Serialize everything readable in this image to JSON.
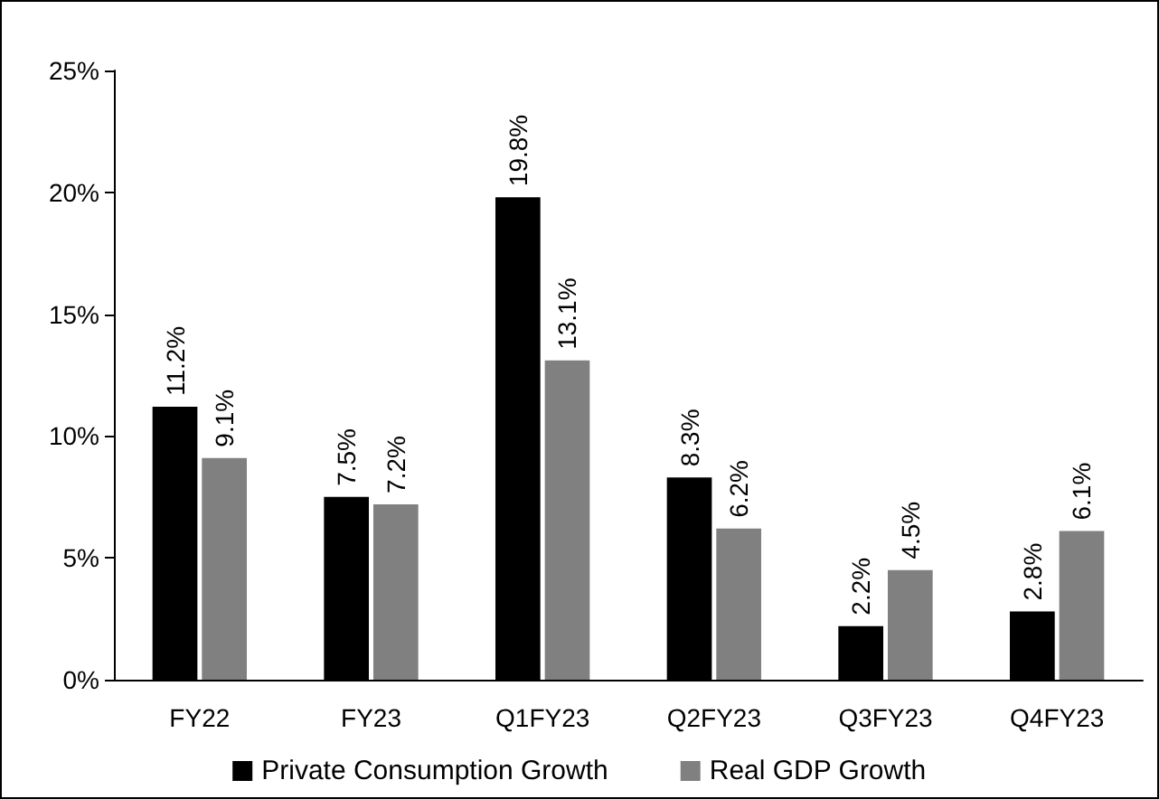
{
  "chart_data": {
    "type": "bar",
    "categories": [
      "FY22",
      "FY23",
      "Q1FY23",
      "Q2FY23",
      "Q3FY23",
      "Q4FY23"
    ],
    "series": [
      {
        "name": "Private Consumption Growth",
        "color": "#000000",
        "values": [
          11.2,
          7.5,
          19.8,
          8.3,
          2.2,
          2.8
        ],
        "value_labels": [
          "11.2%",
          "7.5%",
          "19.8%",
          "8.3%",
          "2.2%",
          "2.8%"
        ]
      },
      {
        "name": "Real GDP Growth",
        "color": "#808080",
        "values": [
          9.1,
          7.2,
          13.1,
          6.2,
          4.5,
          6.1
        ],
        "value_labels": [
          "9.1%",
          "7.2%",
          "13.1%",
          "6.2%",
          "4.5%",
          "6.1%"
        ]
      }
    ],
    "ylim": [
      0,
      25
    ],
    "yticks": [
      {
        "value": 0,
        "label": "0%"
      },
      {
        "value": 5,
        "label": "5%"
      },
      {
        "value": 10,
        "label": "10%"
      },
      {
        "value": 15,
        "label": "15%"
      },
      {
        "value": 20,
        "label": "20%"
      },
      {
        "value": 25,
        "label": "25%"
      }
    ],
    "grid": false,
    "legend": "bottom"
  }
}
